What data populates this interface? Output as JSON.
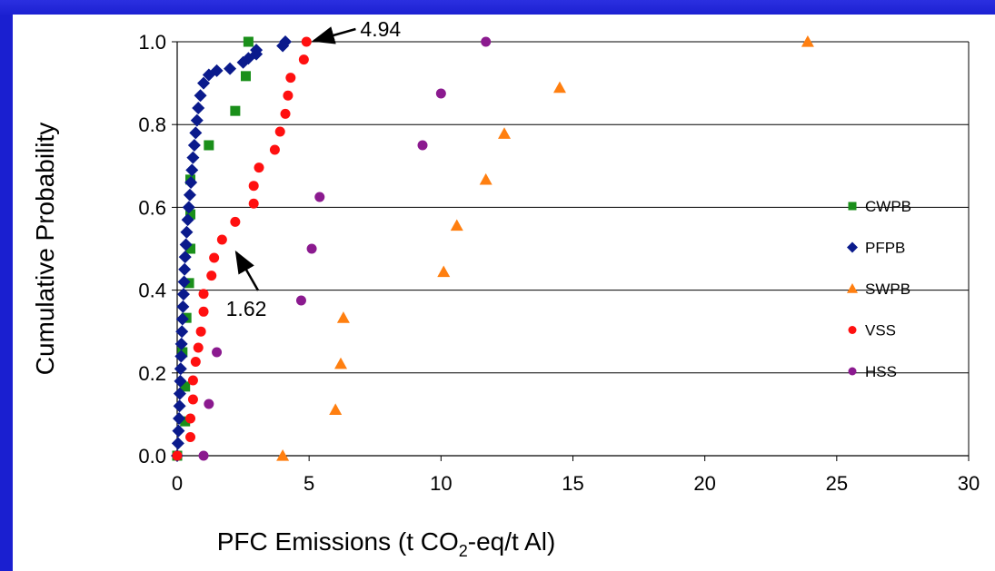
{
  "chart_data": {
    "type": "scatter",
    "xlabel_main": "PFC Emissions (t CO",
    "xlabel_sub": "2",
    "xlabel_tail": "-eq/t Al)",
    "ylabel": "Cumulative Probability",
    "xlim": [
      0,
      30
    ],
    "ylim": [
      0.0,
      1.0
    ],
    "x_ticks": [
      "0",
      "5",
      "10",
      "15",
      "20",
      "25",
      "30"
    ],
    "y_ticks": [
      "0.0",
      "0.2",
      "0.4",
      "0.6",
      "0.8",
      "1.0"
    ],
    "legend_position": "right",
    "grid": "horizontal",
    "annotations": [
      {
        "text": "4.94",
        "x": 4.94,
        "y": 1.0
      },
      {
        "text": "1.62",
        "x": 1.62,
        "y": 0.5
      }
    ],
    "series": [
      {
        "name": "CWPB",
        "marker": "square",
        "color": "#1a8f1a",
        "points": [
          [
            0.0,
            0.0
          ],
          [
            0.3,
            0.083
          ],
          [
            0.3,
            0.167
          ],
          [
            0.2,
            0.25
          ],
          [
            0.35,
            0.333
          ],
          [
            0.45,
            0.417
          ],
          [
            0.5,
            0.5
          ],
          [
            0.5,
            0.583
          ],
          [
            0.5,
            0.667
          ],
          [
            1.2,
            0.75
          ],
          [
            2.2,
            0.833
          ],
          [
            2.6,
            0.917
          ],
          [
            2.7,
            1.0
          ]
        ]
      },
      {
        "name": "PFPB",
        "marker": "diamond",
        "color": "#0a1a8c",
        "points": [
          [
            0.0,
            0.0
          ],
          [
            0.03,
            0.03
          ],
          [
            0.05,
            0.06
          ],
          [
            0.07,
            0.09
          ],
          [
            0.09,
            0.12
          ],
          [
            0.1,
            0.15
          ],
          [
            0.12,
            0.18
          ],
          [
            0.13,
            0.21
          ],
          [
            0.15,
            0.24
          ],
          [
            0.16,
            0.27
          ],
          [
            0.18,
            0.3
          ],
          [
            0.2,
            0.33
          ],
          [
            0.22,
            0.36
          ],
          [
            0.24,
            0.39
          ],
          [
            0.26,
            0.42
          ],
          [
            0.28,
            0.45
          ],
          [
            0.3,
            0.48
          ],
          [
            0.33,
            0.51
          ],
          [
            0.36,
            0.54
          ],
          [
            0.4,
            0.57
          ],
          [
            0.44,
            0.6
          ],
          [
            0.48,
            0.63
          ],
          [
            0.52,
            0.66
          ],
          [
            0.56,
            0.69
          ],
          [
            0.6,
            0.72
          ],
          [
            0.65,
            0.75
          ],
          [
            0.7,
            0.78
          ],
          [
            0.75,
            0.81
          ],
          [
            0.8,
            0.84
          ],
          [
            0.88,
            0.87
          ],
          [
            1.0,
            0.9
          ],
          [
            1.2,
            0.92
          ],
          [
            1.5,
            0.93
          ],
          [
            2.0,
            0.935
          ],
          [
            2.5,
            0.95
          ],
          [
            2.7,
            0.96
          ],
          [
            3.0,
            0.97
          ],
          [
            3.0,
            0.98
          ],
          [
            4.0,
            0.99
          ],
          [
            4.1,
            1.0
          ]
        ]
      },
      {
        "name": "SWPB",
        "marker": "triangle",
        "color": "#ff7f10",
        "points": [
          [
            4.0,
            0.0
          ],
          [
            6.0,
            0.111
          ],
          [
            6.2,
            0.222
          ],
          [
            6.3,
            0.333
          ],
          [
            10.1,
            0.444
          ],
          [
            10.6,
            0.556
          ],
          [
            11.7,
            0.667
          ],
          [
            12.4,
            0.778
          ],
          [
            14.5,
            0.889
          ],
          [
            23.9,
            1.0
          ]
        ]
      },
      {
        "name": "VSS",
        "marker": "circle",
        "color": "#ff1010",
        "points": [
          [
            0.0,
            0.0
          ],
          [
            0.5,
            0.045
          ],
          [
            0.5,
            0.09
          ],
          [
            0.6,
            0.136
          ],
          [
            0.6,
            0.182
          ],
          [
            0.7,
            0.227
          ],
          [
            0.8,
            0.261
          ],
          [
            0.9,
            0.3
          ],
          [
            1.0,
            0.348
          ],
          [
            1.0,
            0.391
          ],
          [
            1.3,
            0.435
          ],
          [
            1.4,
            0.478
          ],
          [
            1.7,
            0.522
          ],
          [
            2.2,
            0.565
          ],
          [
            2.9,
            0.609
          ],
          [
            2.9,
            0.652
          ],
          [
            3.1,
            0.696
          ],
          [
            3.7,
            0.739
          ],
          [
            3.9,
            0.783
          ],
          [
            4.1,
            0.826
          ],
          [
            4.2,
            0.87
          ],
          [
            4.3,
            0.913
          ],
          [
            4.8,
            0.957
          ],
          [
            4.9,
            1.0
          ]
        ]
      },
      {
        "name": "HSS",
        "marker": "circle",
        "color": "#8b1a8f",
        "points": [
          [
            1.0,
            0.0
          ],
          [
            1.2,
            0.125
          ],
          [
            1.5,
            0.25
          ],
          [
            4.7,
            0.375
          ],
          [
            5.1,
            0.5
          ],
          [
            5.4,
            0.625
          ],
          [
            9.3,
            0.75
          ],
          [
            10.0,
            0.875
          ],
          [
            11.7,
            1.0
          ]
        ]
      }
    ]
  }
}
